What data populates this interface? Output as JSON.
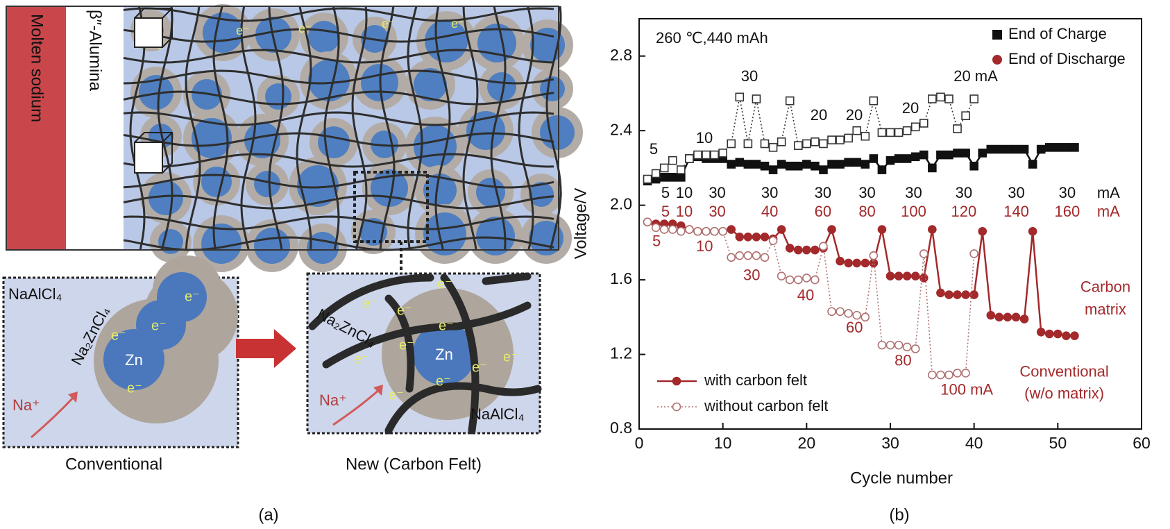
{
  "chart_data": {
    "type": "line",
    "xlabel": "Cycle number",
    "ylabel": "Voltage/V",
    "x": [
      1,
      2,
      3,
      4,
      5,
      6,
      7,
      8,
      9,
      10,
      11,
      12,
      13,
      14,
      15,
      16,
      17,
      18,
      19,
      20,
      21,
      22,
      23,
      24,
      25,
      26,
      27,
      28,
      29,
      30,
      31,
      32,
      33,
      34,
      35,
      36,
      37,
      38,
      39,
      40,
      41,
      42,
      43,
      44,
      45,
      46,
      47,
      48,
      49,
      50,
      51,
      52
    ],
    "xlim": [
      0,
      60
    ],
    "xticks": [
      0,
      10,
      20,
      30,
      40,
      50,
      60
    ],
    "ylim": [
      0.8,
      3.0
    ],
    "yticks": [
      0.8,
      1.2,
      1.6,
      {
        "value": 2,
        "label": "2.0"
      },
      2.4,
      2.8
    ],
    "legend": "lower left",
    "legend_top": [
      {
        "label": "End of Charge",
        "color": "#111111",
        "marker": "square"
      },
      {
        "label": "End of Discharge",
        "color": "#a3292b",
        "marker": "circle"
      }
    ],
    "series": [
      {
        "color": "#111111",
        "marker": "square",
        "filled": true,
        "dotted": false,
        "values": [
          2.13,
          2.14,
          2.15,
          2.15,
          2.15,
          2.25,
          2.26,
          2.25,
          2.25,
          2.25,
          2.22,
          2.23,
          2.22,
          2.22,
          2.21,
          2.19,
          2.22,
          2.21,
          2.21,
          2.22,
          2.21,
          2.19,
          2.22,
          2.22,
          2.23,
          2.23,
          2.22,
          2.25,
          2.19,
          2.24,
          2.25,
          2.25,
          2.26,
          2.27,
          2.2,
          2.27,
          2.27,
          2.28,
          2.28,
          2.21,
          2.28,
          2.3,
          2.3,
          2.3,
          2.3,
          2.3,
          2.22,
          2.3,
          2.31,
          2.31,
          2.31,
          2.31
        ]
      },
      {
        "color": "#333333",
        "marker": "square",
        "filled": false,
        "dotted": true,
        "values": [
          2.14,
          2.17,
          2.2,
          2.24,
          2.19,
          2.25,
          2.27,
          2.27,
          2.27,
          2.28,
          2.33,
          2.58,
          2.33,
          2.57,
          2.33,
          2.31,
          2.34,
          2.56,
          2.32,
          2.33,
          2.34,
          2.33,
          2.35,
          2.35,
          2.36,
          2.4,
          2.37,
          2.56,
          2.39,
          2.39,
          2.39,
          2.4,
          2.42,
          2.44,
          2.57,
          2.58,
          2.57,
          2.41,
          2.48,
          2.57,
          null,
          null,
          null,
          null,
          null,
          null,
          null,
          null,
          null,
          null,
          null,
          null
        ]
      },
      {
        "name": "with carbon felt",
        "color": "#a3292b",
        "marker": "circle",
        "filled": true,
        "dotted": false,
        "values": [
          1.91,
          1.9,
          1.9,
          1.9,
          1.89,
          1.87,
          1.86,
          1.86,
          1.86,
          1.86,
          1.87,
          1.83,
          1.83,
          1.83,
          1.83,
          1.82,
          1.87,
          1.77,
          1.76,
          1.76,
          1.76,
          1.77,
          1.87,
          1.7,
          1.69,
          1.69,
          1.69,
          1.69,
          1.87,
          1.62,
          1.62,
          1.62,
          1.62,
          1.61,
          1.87,
          1.53,
          1.52,
          1.52,
          1.52,
          1.52,
          1.86,
          1.41,
          1.4,
          1.4,
          1.4,
          1.39,
          1.86,
          1.32,
          1.31,
          1.31,
          1.3,
          1.3
        ]
      },
      {
        "name": "without carbon felt",
        "color": "#b07070",
        "marker": "circle",
        "filled": false,
        "dotted": true,
        "values": [
          1.91,
          1.88,
          1.87,
          1.87,
          1.86,
          1.87,
          1.86,
          1.86,
          1.86,
          1.86,
          1.72,
          1.73,
          1.73,
          1.73,
          1.72,
          1.81,
          1.62,
          1.6,
          1.6,
          1.61,
          1.6,
          1.78,
          1.43,
          1.43,
          1.42,
          1.41,
          1.4,
          1.73,
          1.25,
          1.25,
          1.25,
          1.24,
          1.23,
          1.74,
          1.09,
          1.09,
          1.09,
          1.1,
          1.1,
          1.74,
          null,
          null,
          null,
          null,
          null,
          null,
          null,
          null,
          null,
          null,
          null,
          null
        ]
      }
    ],
    "annotations": [
      "260 ℃,440 mAh",
      "5",
      "10",
      "30",
      "20",
      "20",
      "20",
      "20 mA",
      "5",
      "10",
      "30",
      "30",
      "30",
      "30",
      "30",
      "30",
      "30",
      "30",
      "mA",
      "5",
      "10",
      "30",
      "40",
      "60",
      "80",
      "100",
      "120",
      "140",
      "160",
      "mA",
      "5",
      "10",
      "30",
      "40",
      "60",
      "80",
      "100 mA",
      "Carbon",
      "matrix",
      "Conventional",
      "(w/o matrix)"
    ]
  },
  "diagram": {
    "molten": "Molten sodium",
    "alumina": "β″-Alumina",
    "electron": "e⁻",
    "conventional": {
      "caption": "Conventional",
      "electrolyte": "NaAlCl₄",
      "shell": "Na₂ZnCl₄",
      "core": "Zn",
      "ion": "Na⁺"
    },
    "new": {
      "caption": "New (Carbon Felt)",
      "electrolyte": "NaAlCl₄",
      "shell": "Na₂ZnCl₄",
      "core": "Zn",
      "ion": "Na⁺"
    }
  },
  "panel_labels": [
    "(a)",
    "(b)"
  ]
}
